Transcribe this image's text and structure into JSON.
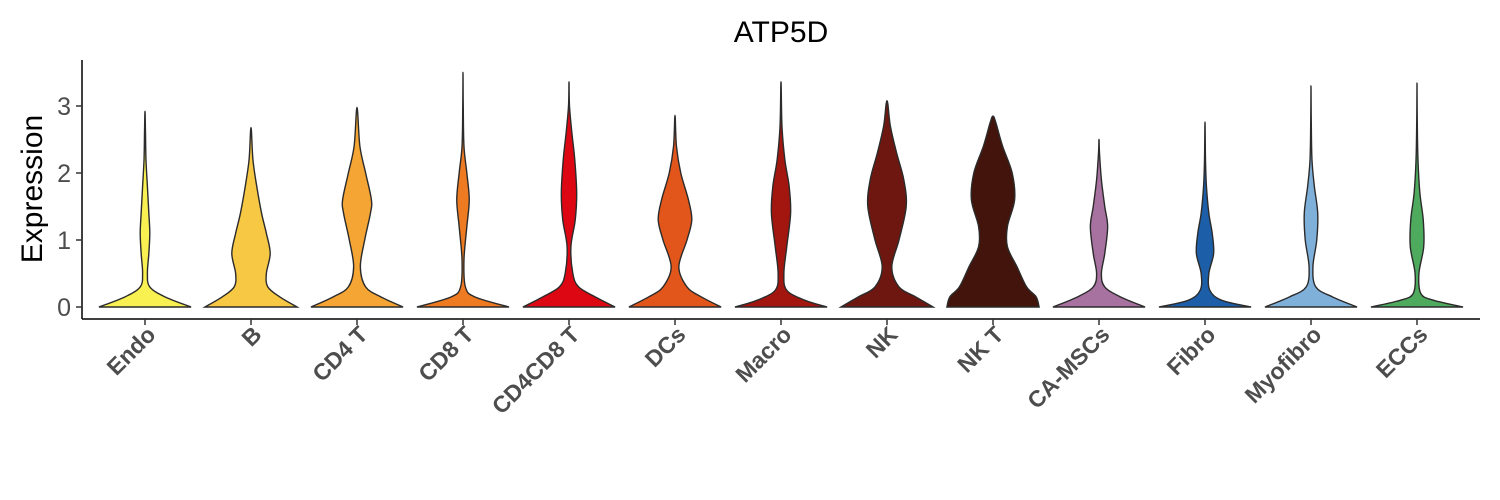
{
  "chart_data": {
    "type": "violin",
    "title": "ATP5D",
    "xlabel": "",
    "ylabel": "Expression",
    "ylim": [
      -0.18,
      3.68
    ],
    "yticks": [
      0,
      1,
      2,
      3
    ],
    "ytick_labels": [
      "0",
      "1",
      "2",
      "3"
    ],
    "grid": false,
    "legend": "none",
    "categories": [
      "Endo",
      "B",
      "CD4 T",
      "CD8 T",
      "CD4CD8 T",
      "DCs",
      "Macro",
      "NK",
      "NK T",
      "CA-MSCs",
      "Fibro",
      "Myofibro",
      "ECCs"
    ],
    "colors": [
      "#F9F151",
      "#F7C843",
      "#F4A534",
      "#EE7A22",
      "#DC0712",
      "#E2561C",
      "#A3150F",
      "#6E1710",
      "#43140B",
      "#A771A0",
      "#1C5FA8",
      "#7FB0DA",
      "#4EAB5E"
    ],
    "violins": [
      {
        "name": "Endo",
        "max": 2.92,
        "profile": [
          [
            0,
            0.96
          ],
          [
            0.15,
            0.42
          ],
          [
            0.3,
            0.1
          ],
          [
            0.5,
            0.05
          ],
          [
            0.8,
            0.08
          ],
          [
            1.1,
            0.1
          ],
          [
            1.4,
            0.08
          ],
          [
            1.8,
            0.05
          ],
          [
            2.2,
            0.02
          ],
          [
            2.6,
            0.01
          ],
          [
            2.92,
            0
          ]
        ]
      },
      {
        "name": "B",
        "max": 2.68,
        "profile": [
          [
            0,
            0.96
          ],
          [
            0.15,
            0.6
          ],
          [
            0.3,
            0.35
          ],
          [
            0.5,
            0.32
          ],
          [
            0.8,
            0.4
          ],
          [
            1.1,
            0.32
          ],
          [
            1.4,
            0.22
          ],
          [
            1.8,
            0.12
          ],
          [
            2.2,
            0.04
          ],
          [
            2.68,
            0
          ]
        ]
      },
      {
        "name": "CD4 T",
        "max": 2.98,
        "profile": [
          [
            0,
            0.96
          ],
          [
            0.15,
            0.5
          ],
          [
            0.3,
            0.18
          ],
          [
            0.6,
            0.07
          ],
          [
            1.0,
            0.16
          ],
          [
            1.4,
            0.28
          ],
          [
            1.6,
            0.3
          ],
          [
            2.0,
            0.18
          ],
          [
            2.4,
            0.06
          ],
          [
            2.98,
            0
          ]
        ]
      },
      {
        "name": "CD8 T",
        "max": 3.5,
        "profile": [
          [
            0,
            0.96
          ],
          [
            0.15,
            0.25
          ],
          [
            0.3,
            0.05
          ],
          [
            0.7,
            0.02
          ],
          [
            1.2,
            0.08
          ],
          [
            1.6,
            0.13
          ],
          [
            2.0,
            0.08
          ],
          [
            2.4,
            0.02
          ],
          [
            3.0,
            0.005
          ],
          [
            3.5,
            0
          ]
        ]
      },
      {
        "name": "CD4CD8 T",
        "max": 3.36,
        "profile": [
          [
            0,
            0.96
          ],
          [
            0.15,
            0.55
          ],
          [
            0.3,
            0.2
          ],
          [
            0.5,
            0.08
          ],
          [
            0.9,
            0.04
          ],
          [
            1.3,
            0.13
          ],
          [
            1.7,
            0.16
          ],
          [
            2.2,
            0.12
          ],
          [
            2.6,
            0.06
          ],
          [
            3.0,
            0.01
          ],
          [
            3.36,
            0
          ]
        ]
      },
      {
        "name": "DCs",
        "max": 2.86,
        "profile": [
          [
            0,
            0.96
          ],
          [
            0.15,
            0.55
          ],
          [
            0.3,
            0.25
          ],
          [
            0.6,
            0.08
          ],
          [
            1.0,
            0.25
          ],
          [
            1.3,
            0.35
          ],
          [
            1.6,
            0.28
          ],
          [
            2.0,
            0.12
          ],
          [
            2.4,
            0.03
          ],
          [
            2.86,
            0
          ]
        ]
      },
      {
        "name": "Macro",
        "max": 3.36,
        "profile": [
          [
            0,
            0.96
          ],
          [
            0.1,
            0.5
          ],
          [
            0.25,
            0.12
          ],
          [
            0.5,
            0.06
          ],
          [
            0.9,
            0.12
          ],
          [
            1.4,
            0.2
          ],
          [
            1.8,
            0.17
          ],
          [
            2.2,
            0.08
          ],
          [
            2.7,
            0.02
          ],
          [
            3.36,
            0
          ]
        ]
      },
      {
        "name": "NK",
        "max": 3.08,
        "profile": [
          [
            0,
            0.96
          ],
          [
            0.15,
            0.6
          ],
          [
            0.3,
            0.25
          ],
          [
            0.6,
            0.1
          ],
          [
            1.0,
            0.25
          ],
          [
            1.5,
            0.4
          ],
          [
            1.9,
            0.35
          ],
          [
            2.3,
            0.2
          ],
          [
            2.7,
            0.07
          ],
          [
            3.08,
            0
          ]
        ]
      },
      {
        "name": "NK T",
        "max": 2.85,
        "profile": [
          [
            0,
            0.96
          ],
          [
            0.15,
            0.9
          ],
          [
            0.3,
            0.7
          ],
          [
            0.6,
            0.5
          ],
          [
            0.9,
            0.3
          ],
          [
            1.2,
            0.3
          ],
          [
            1.6,
            0.45
          ],
          [
            2.0,
            0.4
          ],
          [
            2.4,
            0.2
          ],
          [
            2.75,
            0.06
          ],
          [
            2.85,
            0
          ]
        ]
      },
      {
        "name": "CA-MSCs",
        "max": 2.5,
        "profile": [
          [
            0,
            0.96
          ],
          [
            0.15,
            0.45
          ],
          [
            0.3,
            0.12
          ],
          [
            0.5,
            0.05
          ],
          [
            0.8,
            0.12
          ],
          [
            1.2,
            0.18
          ],
          [
            1.5,
            0.12
          ],
          [
            1.9,
            0.05
          ],
          [
            2.3,
            0.01
          ],
          [
            2.5,
            0
          ]
        ]
      },
      {
        "name": "Fibro",
        "max": 2.76,
        "profile": [
          [
            0,
            0.96
          ],
          [
            0.1,
            0.35
          ],
          [
            0.25,
            0.1
          ],
          [
            0.5,
            0.08
          ],
          [
            0.8,
            0.18
          ],
          [
            1.1,
            0.15
          ],
          [
            1.4,
            0.08
          ],
          [
            1.8,
            0.03
          ],
          [
            2.2,
            0.01
          ],
          [
            2.76,
            0
          ]
        ]
      },
      {
        "name": "Myofibro",
        "max": 3.3,
        "profile": [
          [
            0,
            0.96
          ],
          [
            0.15,
            0.45
          ],
          [
            0.3,
            0.1
          ],
          [
            0.6,
            0.04
          ],
          [
            1.0,
            0.12
          ],
          [
            1.4,
            0.14
          ],
          [
            1.8,
            0.07
          ],
          [
            2.2,
            0.02
          ],
          [
            2.8,
            0.005
          ],
          [
            3.3,
            0
          ]
        ]
      },
      {
        "name": "ECCs",
        "max": 3.34,
        "profile": [
          [
            0,
            0.96
          ],
          [
            0.1,
            0.35
          ],
          [
            0.2,
            0.08
          ],
          [
            0.5,
            0.04
          ],
          [
            0.9,
            0.14
          ],
          [
            1.3,
            0.13
          ],
          [
            1.7,
            0.06
          ],
          [
            2.2,
            0.02
          ],
          [
            2.8,
            0.005
          ],
          [
            3.34,
            0
          ]
        ]
      }
    ]
  }
}
